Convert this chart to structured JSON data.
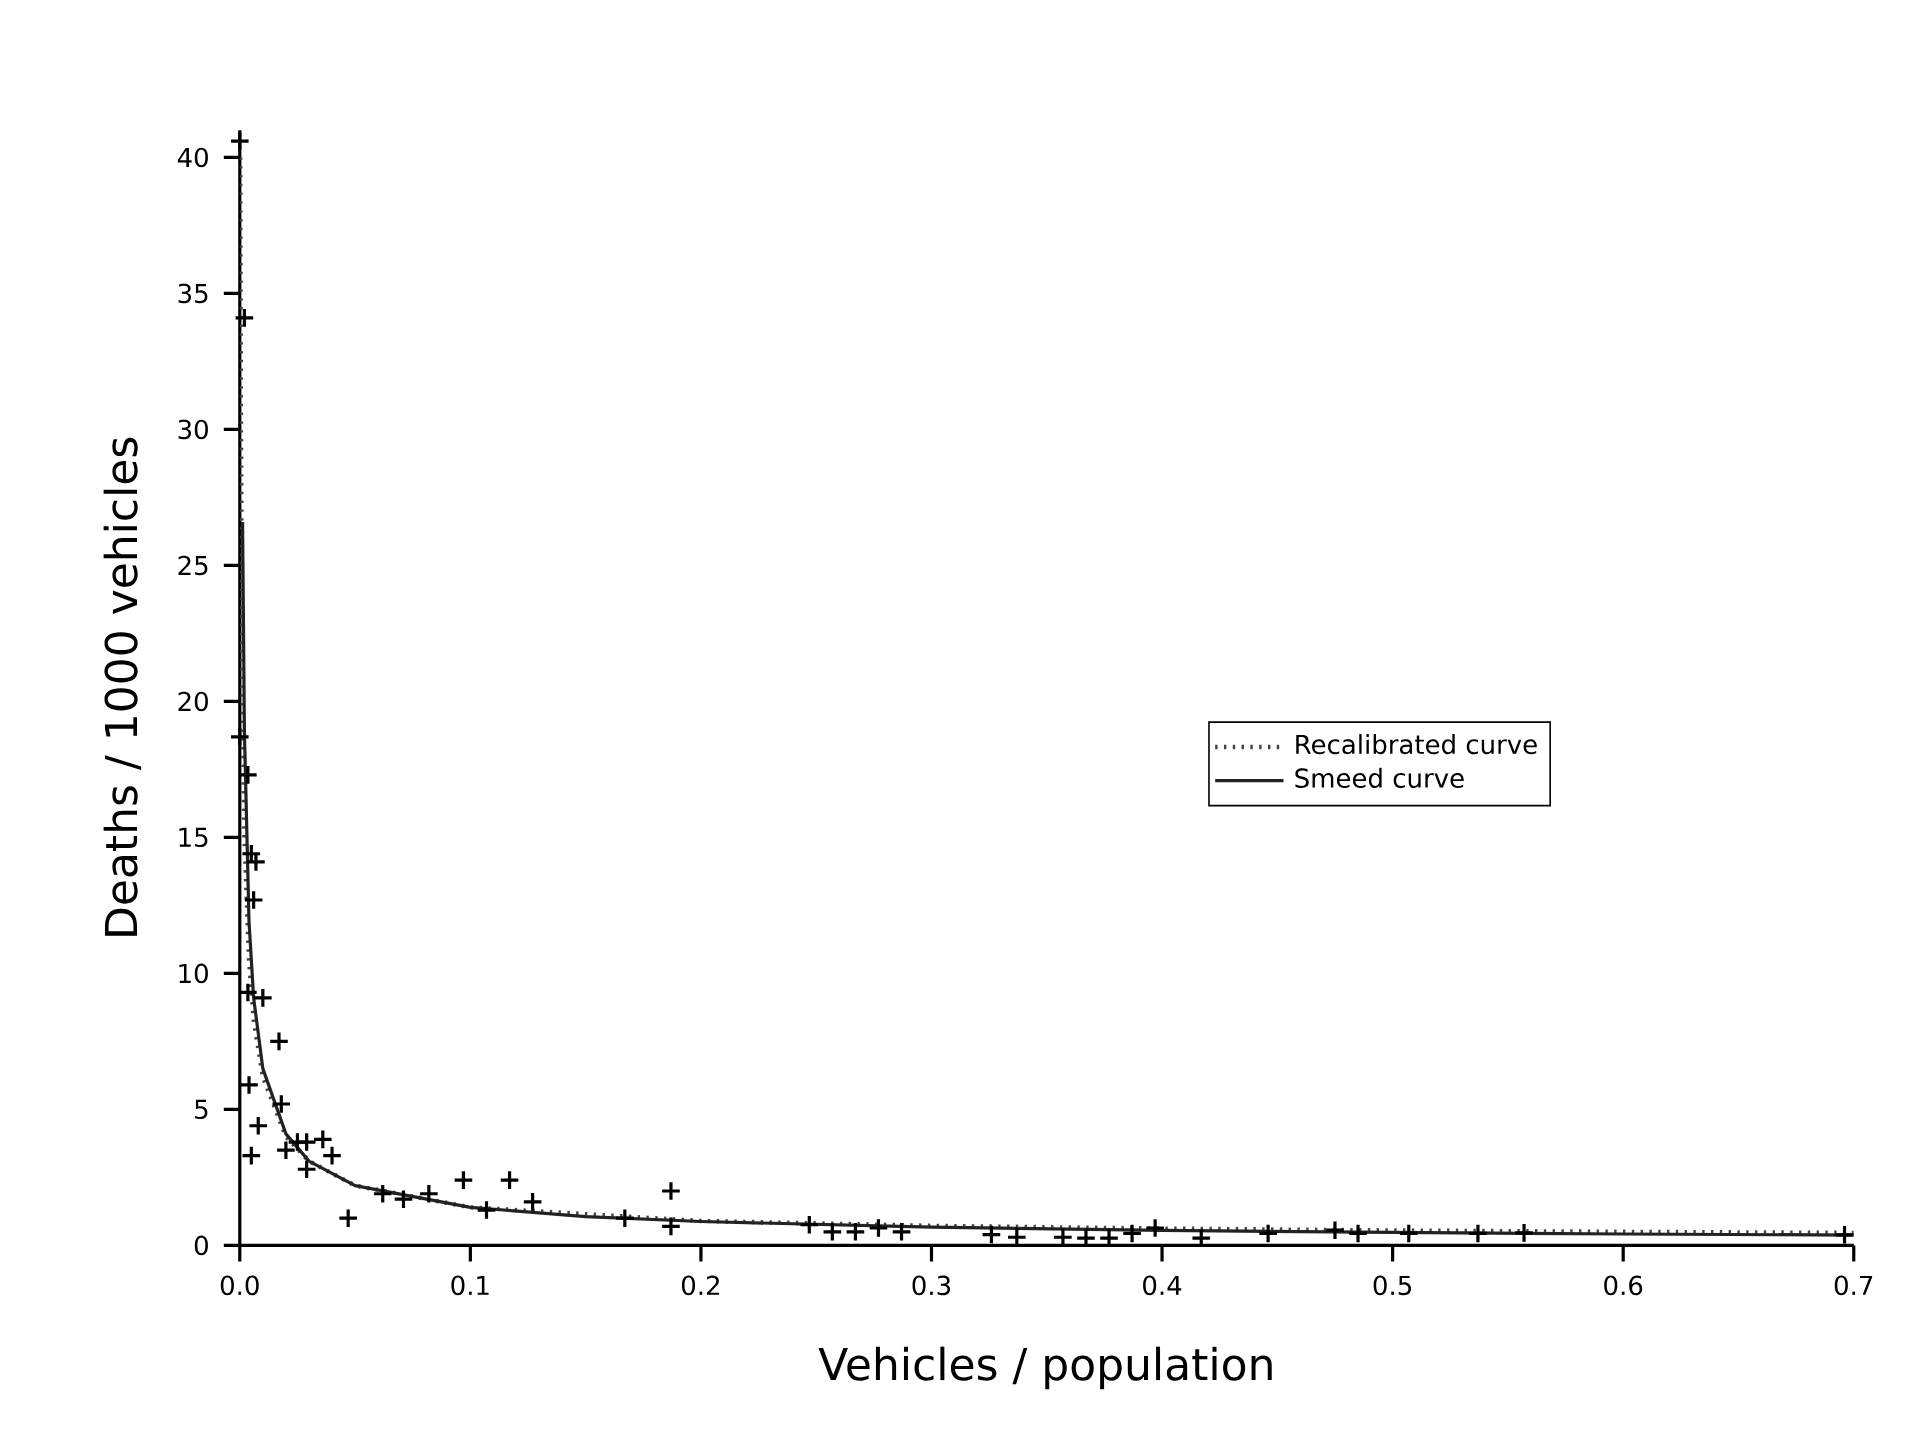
{
  "chart_data": {
    "type": "scatter",
    "xlabel": "Vehicles / population",
    "ylabel": "Deaths / 1000 vehicles",
    "xlim": [
      0,
      0.7
    ],
    "ylim": [
      0,
      41
    ],
    "xticks": [
      {
        "value": 0,
        "label": "0.0"
      },
      0.1,
      0.2,
      0.3,
      0.4,
      0.5,
      0.6,
      0.7
    ],
    "yticks": [
      0,
      5,
      10,
      15,
      20,
      25,
      30,
      35,
      40
    ],
    "grid": false,
    "legend": "right",
    "series": [
      {
        "type": "line",
        "name": "Recalibrated curve",
        "color": "#444444",
        "line_style": "dotted",
        "marker": "none",
        "x": [
          0.0002,
          0.0005,
          0.001,
          0.002,
          0.004,
          0.006,
          0.01,
          0.02,
          0.03,
          0.05,
          0.1,
          0.2,
          0.3,
          0.4,
          0.5,
          0.6,
          0.7
        ],
        "values": [
          40,
          30,
          22,
          15,
          10.5,
          8.3,
          6.2,
          4.0,
          3.1,
          2.2,
          1.4,
          0.9,
          0.72,
          0.62,
          0.55,
          0.5,
          0.46
        ]
      },
      {
        "type": "line",
        "name": "Smeed curve",
        "color": "#222222",
        "line_style": "solid",
        "marker": "none",
        "x": [
          0.0012,
          0.002,
          0.004,
          0.006,
          0.01,
          0.02,
          0.03,
          0.05,
          0.1,
          0.15,
          0.2,
          0.3,
          0.4,
          0.5,
          0.6,
          0.7
        ],
        "values": [
          26.6,
          18.9,
          11.9,
          9.1,
          6.5,
          4.1,
          3.1,
          2.2,
          1.4,
          1.06,
          0.88,
          0.67,
          0.55,
          0.48,
          0.42,
          0.38
        ]
      },
      {
        "color": "#000000",
        "marker": "cross",
        "x": [
          0.0,
          0.002,
          0.0,
          0.0035,
          0.005,
          0.007,
          0.006,
          0.0035,
          0.01,
          0.017,
          0.004,
          0.018,
          0.008,
          0.005,
          0.02,
          0.025,
          0.029,
          0.036,
          0.04,
          0.029,
          0.047,
          0.062,
          0.071,
          0.082,
          0.097,
          0.107,
          0.117,
          0.127,
          0.167,
          0.187,
          0.187,
          0.247,
          0.257,
          0.267,
          0.277,
          0.287,
          0.326,
          0.337,
          0.357,
          0.367,
          0.377,
          0.387,
          0.397,
          0.417,
          0.446,
          0.475,
          0.485,
          0.507,
          0.537,
          0.557,
          0.696
        ],
        "values": [
          40.6,
          34.1,
          18.7,
          17.3,
          14.4,
          14.1,
          12.7,
          9.3,
          9.1,
          7.5,
          5.9,
          5.2,
          4.4,
          3.3,
          3.5,
          3.8,
          3.8,
          3.9,
          3.3,
          2.8,
          1.0,
          1.9,
          1.7,
          1.9,
          2.4,
          1.3,
          2.4,
          1.6,
          1.0,
          2.0,
          0.7,
          0.76,
          0.5,
          0.5,
          0.64,
          0.5,
          0.4,
          0.3,
          0.3,
          0.27,
          0.27,
          0.44,
          0.64,
          0.27,
          0.44,
          0.56,
          0.44,
          0.44,
          0.44,
          0.46,
          0.39
        ]
      }
    ]
  }
}
